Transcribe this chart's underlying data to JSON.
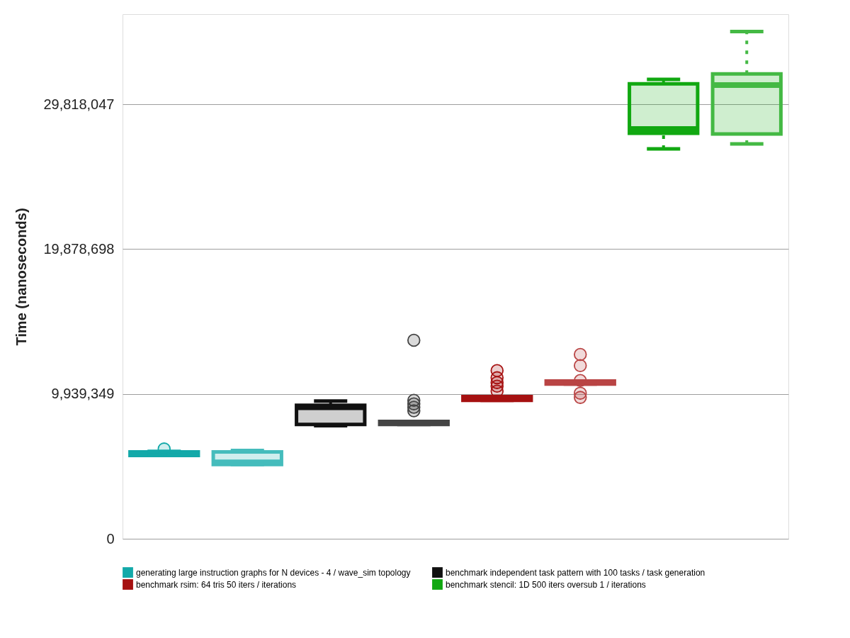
{
  "chart_data": {
    "type": "box",
    "categories": [
      null,
      null,
      null,
      null,
      null,
      null,
      null,
      null
    ],
    "ylabel": "Time (nanoseconds)",
    "ylim": [
      0,
      36000000
    ],
    "yticks": [
      0,
      {
        "value": 9939349,
        "label": "9,939,349"
      },
      {
        "value": 19878698,
        "label": "19,878,698"
      },
      {
        "value": 29818047,
        "label": "29,818,047"
      }
    ],
    "tick_labels": "y",
    "grid": "y",
    "legend": "bottom",
    "series": [
      {
        "name": "generating large instruction graphs for N devices - 4 / wave_sim topology",
        "color": "#13a9a9",
        "colors": [
          "#13a9a9",
          "#45bcbc",
          null,
          null,
          null,
          null,
          null,
          null
        ],
        "boxes": [
          {
            "low": 5720000,
            "q1": 5720000,
            "median": 5820000,
            "q3": 5960000,
            "high": 6000000,
            "outliers": [
              6160000
            ]
          },
          {
            "low": 5090000,
            "q1": 5090000,
            "median": 5240000,
            "q3": 5960000,
            "high": 6060000
          },
          null,
          null,
          null,
          null,
          null,
          null
        ]
      },
      {
        "name": "benchmark independent task pattern with  100 tasks / task generation",
        "color": "#111111",
        "colors": [
          null,
          null,
          "#111111",
          "#444444",
          null,
          null,
          null,
          null
        ],
        "boxes": [
          null,
          null,
          {
            "low": 7760000,
            "q1": 7850000,
            "median": 9020000,
            "q3": 9160000,
            "high": 9450000
          },
          {
            "low": 7850000,
            "q1": 7850000,
            "median": 7950000,
            "q3": 8050000,
            "high": 8050000,
            "outliers": [
              13620000,
              9500000,
              9260000,
              9020000,
              8780000
            ]
          },
          null,
          null,
          null,
          null
        ]
      },
      {
        "name": "benchmark rsim:   64 tris  50 iters / iterations",
        "color": "#a61111",
        "colors": [
          null,
          null,
          null,
          null,
          "#a61111",
          "#b94444",
          null,
          null
        ],
        "boxes": [
          null,
          null,
          null,
          null,
          {
            "low": 9500000,
            "q1": 9500000,
            "median": 9650000,
            "q3": 9750000,
            "high": 9750000,
            "outliers": [
              11540000,
              11050000,
              10720000,
              10470000,
              10130000
            ]
          },
          {
            "low": 10620000,
            "q1": 10620000,
            "median": 10720000,
            "q3": 10820000,
            "high": 10820000,
            "outliers": [
              12650000,
              11880000,
              10860000,
              9990000,
              9700000
            ]
          },
          null,
          null
        ]
      },
      {
        "name": "benchmark stencil: 1D 500 iters oversub 1 / iterations",
        "color": "#11a811",
        "colors": [
          null,
          null,
          null,
          null,
          null,
          null,
          "#11a811",
          "#44b944"
        ],
        "boxes": [
          null,
          null,
          null,
          null,
          null,
          null,
          {
            "low": 26760000,
            "q1": 27830000,
            "median": 28120000,
            "q3": 31220000,
            "high": 31520000
          },
          {
            "low": 27100000,
            "q1": 27780000,
            "median": 31130000,
            "q3": 31900000,
            "high": 34810000
          }
        ]
      }
    ]
  }
}
